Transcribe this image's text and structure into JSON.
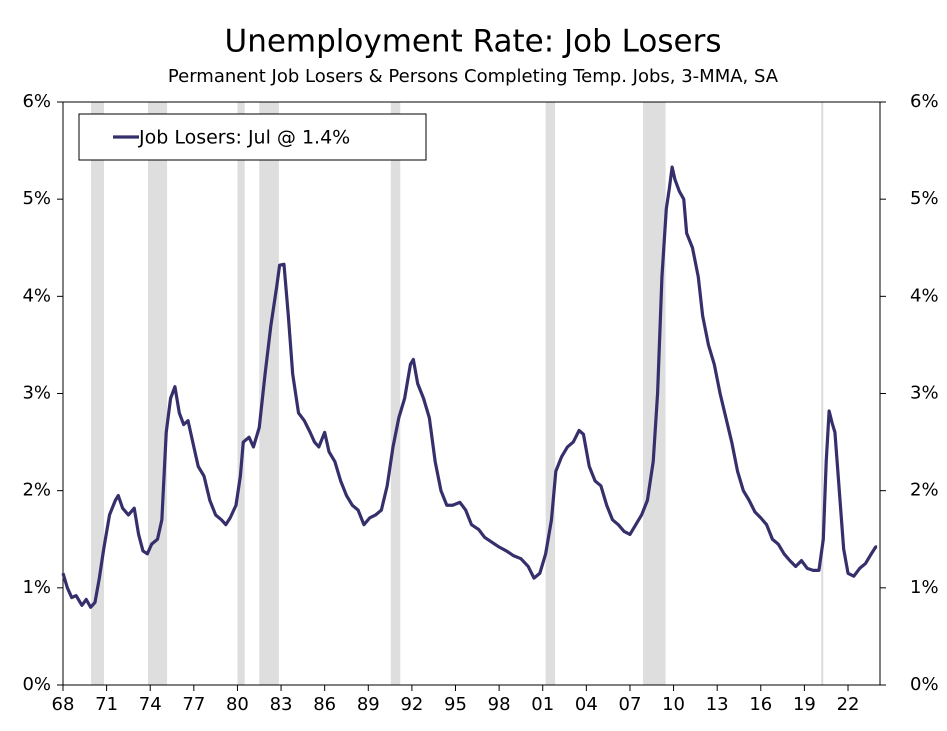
{
  "chart_data": {
    "type": "line",
    "title": "Unemployment Rate: Job Losers",
    "subtitle": "Permanent Job Losers & Persons Completing Temp. Jobs, 3-MMA, SA",
    "xlim": [
      1968,
      2024.2
    ],
    "xticks": [
      {
        "value": 1968,
        "label": "68"
      },
      {
        "value": 1971,
        "label": "71"
      },
      {
        "value": 1974,
        "label": "74"
      },
      {
        "value": 1977,
        "label": "77"
      },
      {
        "value": 1980,
        "label": "80"
      },
      {
        "value": 1983,
        "label": "83"
      },
      {
        "value": 1986,
        "label": "86"
      },
      {
        "value": 1989,
        "label": "89"
      },
      {
        "value": 1992,
        "label": "92"
      },
      {
        "value": 1995,
        "label": "95"
      },
      {
        "value": 1998,
        "label": "98"
      },
      {
        "value": 2001,
        "label": "01"
      },
      {
        "value": 2004,
        "label": "04"
      },
      {
        "value": 2007,
        "label": "07"
      },
      {
        "value": 2010,
        "label": "10"
      },
      {
        "value": 2013,
        "label": "13"
      },
      {
        "value": 2016,
        "label": "16"
      },
      {
        "value": 2019,
        "label": "19"
      },
      {
        "value": 2022,
        "label": "22"
      }
    ],
    "ylim": [
      0,
      6
    ],
    "yticks": [
      {
        "value": 0,
        "label": "0%"
      },
      {
        "value": 1,
        "label": "1%"
      },
      {
        "value": 2,
        "label": "2%"
      },
      {
        "value": 3,
        "label": "3%"
      },
      {
        "value": 4,
        "label": "4%"
      },
      {
        "value": 5,
        "label": "5%"
      },
      {
        "value": 6,
        "label": "6%"
      }
    ],
    "recessions": [
      [
        1969.93,
        1970.82
      ],
      [
        1973.85,
        1975.16
      ],
      [
        1980.0,
        1980.5
      ],
      [
        1981.5,
        1982.85
      ],
      [
        1990.55,
        1991.2
      ],
      [
        2001.2,
        2001.85
      ],
      [
        2007.9,
        2009.45
      ],
      [
        2020.15,
        2020.3
      ]
    ],
    "recession_color": "#dedede",
    "legend_position": "upper left",
    "x": [
      1968.0,
      1968.3,
      1968.6,
      1968.9,
      1969.3,
      1969.6,
      1969.9,
      1970.2,
      1970.5,
      1970.8,
      1971.2,
      1971.6,
      1971.8,
      1972.1,
      1972.5,
      1972.9,
      1973.2,
      1973.5,
      1973.8,
      1974.1,
      1974.5,
      1974.8,
      1975.1,
      1975.4,
      1975.7,
      1976.0,
      1976.3,
      1976.6,
      1977.0,
      1977.3,
      1977.7,
      1978.1,
      1978.5,
      1978.9,
      1979.2,
      1979.5,
      1979.9,
      1980.2,
      1980.4,
      1980.8,
      1981.1,
      1981.5,
      1981.9,
      1982.3,
      1982.7,
      1982.9,
      1983.2,
      1983.5,
      1983.8,
      1984.2,
      1984.6,
      1985.0,
      1985.3,
      1985.6,
      1986.0,
      1986.3,
      1986.7,
      1987.1,
      1987.5,
      1987.9,
      1988.3,
      1988.7,
      1989.1,
      1989.5,
      1989.9,
      1990.3,
      1990.7,
      1991.1,
      1991.5,
      1991.9,
      1992.1,
      1992.4,
      1992.8,
      1993.2,
      1993.6,
      1994.0,
      1994.4,
      1994.8,
      1995.3,
      1995.7,
      1996.1,
      1996.6,
      1997.0,
      1997.5,
      1998.0,
      1998.5,
      1999.0,
      1999.5,
      2000.0,
      2000.4,
      2000.8,
      2001.2,
      2001.6,
      2001.9,
      2002.3,
      2002.7,
      2003.1,
      2003.5,
      2003.8,
      2004.2,
      2004.6,
      2005.0,
      2005.4,
      2005.8,
      2006.2,
      2006.6,
      2007.0,
      2007.4,
      2007.8,
      2008.2,
      2008.6,
      2008.9,
      2009.2,
      2009.5,
      2009.7,
      2009.9,
      2010.1,
      2010.4,
      2010.7,
      2010.9,
      2011.3,
      2011.7,
      2012.0,
      2012.4,
      2012.8,
      2013.2,
      2013.6,
      2014.0,
      2014.4,
      2014.8,
      2015.2,
      2015.6,
      2016.0,
      2016.4,
      2016.8,
      2017.2,
      2017.6,
      2018.0,
      2018.4,
      2018.8,
      2019.2,
      2019.6,
      2020.0,
      2020.3,
      2020.5,
      2020.7,
      2020.9,
      2021.1,
      2021.4,
      2021.7,
      2022.0,
      2022.4,
      2022.8,
      2023.2,
      2023.6,
      2023.9,
      2024.0
    ],
    "series": [
      {
        "name": "Job Losers: Jul @ 1.4%",
        "color": "#35306b",
        "values": [
          1.15,
          1.0,
          0.9,
          0.92,
          0.82,
          0.88,
          0.8,
          0.85,
          1.1,
          1.4,
          1.75,
          1.9,
          1.95,
          1.82,
          1.75,
          1.82,
          1.55,
          1.38,
          1.35,
          1.45,
          1.5,
          1.7,
          2.6,
          2.95,
          3.07,
          2.8,
          2.68,
          2.72,
          2.45,
          2.25,
          2.15,
          1.9,
          1.75,
          1.7,
          1.65,
          1.72,
          1.85,
          2.15,
          2.5,
          2.55,
          2.45,
          2.65,
          3.2,
          3.7,
          4.1,
          4.32,
          4.33,
          3.8,
          3.2,
          2.8,
          2.72,
          2.6,
          2.5,
          2.45,
          2.6,
          2.4,
          2.3,
          2.1,
          1.95,
          1.85,
          1.8,
          1.65,
          1.72,
          1.75,
          1.8,
          2.05,
          2.45,
          2.75,
          2.95,
          3.3,
          3.35,
          3.1,
          2.95,
          2.75,
          2.3,
          2.0,
          1.85,
          1.85,
          1.88,
          1.8,
          1.65,
          1.6,
          1.52,
          1.47,
          1.42,
          1.38,
          1.33,
          1.3,
          1.22,
          1.1,
          1.15,
          1.35,
          1.7,
          2.2,
          2.35,
          2.45,
          2.5,
          2.62,
          2.58,
          2.25,
          2.1,
          2.05,
          1.85,
          1.7,
          1.65,
          1.58,
          1.55,
          1.65,
          1.75,
          1.9,
          2.3,
          3.0,
          4.2,
          4.9,
          5.1,
          5.33,
          5.2,
          5.08,
          5.0,
          4.65,
          4.5,
          4.2,
          3.8,
          3.5,
          3.3,
          3.0,
          2.75,
          2.5,
          2.2,
          2.0,
          1.9,
          1.78,
          1.72,
          1.65,
          1.5,
          1.45,
          1.35,
          1.28,
          1.22,
          1.28,
          1.2,
          1.18,
          1.18,
          1.5,
          2.3,
          2.82,
          2.7,
          2.6,
          2.0,
          1.4,
          1.15,
          1.12,
          1.2,
          1.25,
          1.35,
          1.42,
          1.42
        ]
      }
    ]
  }
}
